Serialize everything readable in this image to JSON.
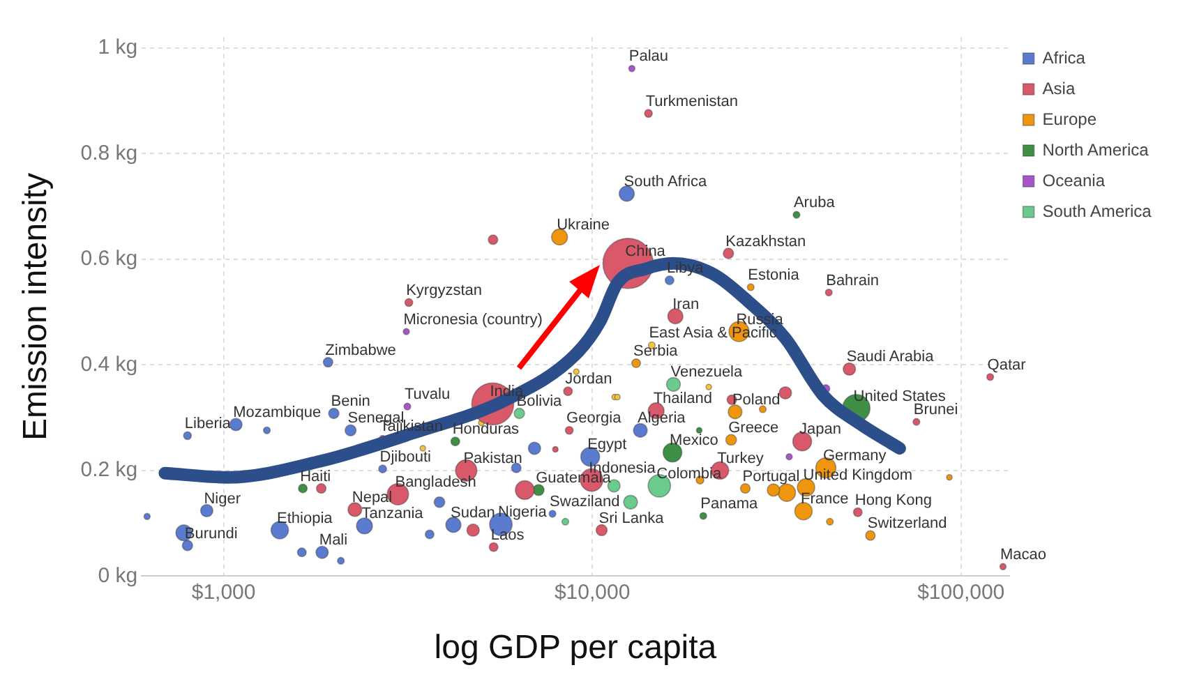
{
  "chart_data": {
    "type": "bubble",
    "xlabel": "log GDP per capita",
    "ylabel": "Emission intensity",
    "log": "x",
    "grid": true,
    "legend": "top right",
    "xlim": [
      600,
      135000
    ],
    "xticks": [
      {
        "value": 1000,
        "label": "$1,000"
      },
      {
        "value": 10000,
        "label": "$10,000"
      },
      {
        "value": 100000,
        "label": "$100,000"
      }
    ],
    "ylim": [
      0,
      1.02
    ],
    "yticks": [
      {
        "value": 0,
        "label": "0 kg"
      },
      {
        "value": 0.2,
        "label": "0.2 kg"
      },
      {
        "value": 0.4,
        "label": "0.4 kg"
      },
      {
        "value": 0.6,
        "label": "0.6 kg"
      },
      {
        "value": 0.8,
        "label": "0.8 kg"
      },
      {
        "value": 1,
        "label": "1 kg"
      }
    ],
    "series": [
      {
        "name": "Africa",
        "color": "#5b7bd0",
        "x": [
          12400,
          16200,
          1920,
          1080,
          798,
          1990,
          2210,
          2700,
          900,
          798,
          780,
          1420,
          1850,
          2410,
          4200,
          5650,
          9870,
          13500,
          7800,
          620,
          6970,
          3850,
          3620,
          2080,
          1630,
          6220,
          1310
        ],
        "values": [
          0.724,
          0.56,
          0.405,
          0.287,
          0.266,
          0.308,
          0.276,
          0.203,
          0.124,
          0.058,
          0.082,
          0.087,
          0.045,
          0.095,
          0.097,
          0.098,
          0.226,
          0.276,
          0.118,
          0.113,
          0.242,
          0.14,
          0.079,
          0.029,
          0.045,
          0.205,
          0.276
        ],
        "sizes": [
          0.09,
          0.03,
          0.036,
          0.06,
          0.024,
          0.042,
          0.048,
          0.024,
          0.06,
          0.042,
          0.1,
          0.12,
          0.06,
          0.1,
          0.09,
          0.2,
          0.14,
          0.075,
          0.018,
          0.015,
          0.06,
          0.045,
          0.03,
          0.018,
          0.03,
          0.036,
          0.018
        ]
      },
      {
        "name": "Asia",
        "color": "#d9596a",
        "x": [
          12500,
          5370,
          3180,
          14200,
          23400,
          43800,
          16800,
          49800,
          120000,
          75700,
          8590,
          14900,
          8660,
          37100,
          22200,
          52500,
          130000,
          10600,
          9960,
          4550,
          2970,
          2270,
          2700,
          5400,
          6560,
          5380,
          4750,
          7940,
          1840,
          33400,
          23900
        ],
        "values": [
          0.592,
          0.326,
          0.518,
          0.876,
          0.611,
          0.537,
          0.492,
          0.392,
          0.377,
          0.292,
          0.35,
          0.313,
          0.276,
          0.255,
          0.2,
          0.121,
          0.018,
          0.087,
          0.182,
          0.2,
          0.155,
          0.126,
          0.26,
          0.055,
          0.163,
          0.637,
          0.087,
          0.24,
          0.166,
          0.347,
          0.334
        ],
        "sizes": [
          1,
          0.7,
          0.024,
          0.024,
          0.042,
          0.018,
          0.09,
          0.06,
          0.018,
          0.018,
          0.03,
          0.1,
          0.024,
          0.14,
          0.12,
          0.03,
          0.015,
          0.048,
          0.2,
          0.18,
          0.18,
          0.075,
          0.018,
          0.03,
          0.14,
          0.036,
          0.06,
          0.012,
          0.036,
          0.06,
          0.036
        ]
      },
      {
        "name": "Europe",
        "color": "#f0960e",
        "x": [
          8150,
          26900,
          25000,
          13150,
          24400,
          23800,
          43000,
          38000,
          37400,
          26000,
          56800,
          33700,
          31000,
          44100,
          19600,
          93000,
          29000
        ],
        "values": [
          0.642,
          0.547,
          0.463,
          0.403,
          0.311,
          0.258,
          0.205,
          0.168,
          0.123,
          0.166,
          0.077,
          0.158,
          0.163,
          0.103,
          0.182,
          0.187,
          0.316
        ],
        "sizes": [
          0.1,
          0.018,
          0.16,
          0.03,
          0.075,
          0.045,
          0.16,
          0.12,
          0.12,
          0.036,
          0.036,
          0.12,
          0.06,
          0.018,
          0.024,
          0.012,
          0.018
        ]
      },
      {
        "name": "North America",
        "color": "#3f8f45",
        "x": [
          35800,
          52000,
          16500,
          20000,
          7150,
          4250,
          1640,
          19500
        ],
        "values": [
          0.684,
          0.318,
          0.234,
          0.114,
          0.163,
          0.255,
          0.166,
          0.276
        ],
        "sizes": [
          0.018,
          0.3,
          0.14,
          0.018,
          0.048,
          0.03,
          0.03,
          0.012
        ]
      },
      {
        "name": "Oceania",
        "color": "#a855c9",
        "x": [
          12800,
          3130,
          3150,
          34200,
          43000
        ],
        "values": [
          0.961,
          0.463,
          0.321,
          0.226,
          0.355
        ],
        "sizes": [
          0.015,
          0.015,
          0.018,
          0.015,
          0.024
        ]
      },
      {
        "name": "South America",
        "color": "#6acb8c",
        "x": [
          16600,
          15200,
          6340,
          12700,
          11450,
          8450
        ],
        "values": [
          0.363,
          0.171,
          0.308,
          0.14,
          0.171,
          0.103
        ],
        "sizes": [
          0.075,
          0.2,
          0.042,
          0.075,
          0.06,
          0.018
        ]
      },
      {
        "color": "#f5c542",
        "x": [
          14500,
          9050,
          11500,
          3470,
          20700,
          11700,
          5000
        ],
        "values": [
          0.437,
          0.387,
          0.339,
          0.242,
          0.358,
          0.339,
          0.29
        ],
        "sizes": [
          0.018,
          0.012,
          0.012,
          0.012,
          0.012,
          0.012,
          0.012
        ]
      },
      {
        "type": "line",
        "color": "#2c4f8c",
        "x": [
          693,
          1026,
          1840,
          3270,
          5850,
          9050,
          10500,
          11700,
          14000,
          16600,
          21000,
          26400,
          33400,
          42300,
          53000,
          68200
        ],
        "values": [
          0.195,
          0.187,
          0.218,
          0.271,
          0.334,
          0.421,
          0.482,
          0.555,
          0.582,
          0.592,
          0.574,
          0.521,
          0.45,
          0.342,
          0.289,
          0.242
        ]
      }
    ],
    "annotations": [
      {
        "text": "China",
        "x": 12500,
        "y": 0.592
      },
      {
        "text": "India",
        "x": 5370,
        "y": 0.326
      },
      {
        "text": "Palau",
        "x": 12800,
        "y": 0.961
      },
      {
        "text": "Turkmenistan",
        "x": 14200,
        "y": 0.876
      },
      {
        "text": "South Africa",
        "x": 12400,
        "y": 0.724
      },
      {
        "text": "Aruba",
        "x": 35800,
        "y": 0.684
      },
      {
        "text": "Ukraine",
        "x": 8150,
        "y": 0.642
      },
      {
        "text": "Kazakhstan",
        "x": 23400,
        "y": 0.611
      },
      {
        "text": "Libya",
        "x": 16200,
        "y": 0.56
      },
      {
        "text": "Estonia",
        "x": 26900,
        "y": 0.547
      },
      {
        "text": "Bahrain",
        "x": 43800,
        "y": 0.537
      },
      {
        "text": "Kyrgyzstan",
        "x": 3180,
        "y": 0.518
      },
      {
        "text": "Iran",
        "x": 16800,
        "y": 0.492
      },
      {
        "text": "Micronesia (country)",
        "x": 3130,
        "y": 0.463
      },
      {
        "text": "Russia",
        "x": 25000,
        "y": 0.463
      },
      {
        "text": "East Asia & Pacific",
        "x": 14500,
        "y": 0.437
      },
      {
        "text": "Zimbabwe",
        "x": 1920,
        "y": 0.405
      },
      {
        "text": "Serbia",
        "x": 13150,
        "y": 0.403
      },
      {
        "text": "Saudi Arabia",
        "x": 49800,
        "y": 0.392
      },
      {
        "text": "Qatar",
        "x": 120000,
        "y": 0.377
      },
      {
        "text": "Venezuela",
        "x": 16600,
        "y": 0.363
      },
      {
        "text": "Jordan",
        "x": 8590,
        "y": 0.35
      },
      {
        "text": "Tuvalu",
        "x": 3150,
        "y": 0.321
      },
      {
        "text": "United States",
        "x": 52000,
        "y": 0.318
      },
      {
        "text": "Benin",
        "x": 1990,
        "y": 0.308
      },
      {
        "text": "Bolivia",
        "x": 6340,
        "y": 0.308
      },
      {
        "text": "Thailand",
        "x": 14900,
        "y": 0.313
      },
      {
        "text": "Poland",
        "x": 24400,
        "y": 0.311
      },
      {
        "text": "Mozambique",
        "x": 1080,
        "y": 0.287
      },
      {
        "text": "Brunei",
        "x": 75700,
        "y": 0.292
      },
      {
        "text": "Liberia",
        "x": 798,
        "y": 0.266
      },
      {
        "text": "Senegal",
        "x": 2210,
        "y": 0.276
      },
      {
        "text": "Georgia",
        "x": 8660,
        "y": 0.276
      },
      {
        "text": "Algeria",
        "x": 13500,
        "y": 0.276
      },
      {
        "text": "Tajikistan",
        "x": 2700,
        "y": 0.26
      },
      {
        "text": "Honduras",
        "x": 4250,
        "y": 0.255
      },
      {
        "text": "Greece",
        "x": 23800,
        "y": 0.258
      },
      {
        "text": "Japan",
        "x": 37100,
        "y": 0.255
      },
      {
        "text": "Mexico",
        "x": 16500,
        "y": 0.234
      },
      {
        "text": "Egypt",
        "x": 9870,
        "y": 0.226
      },
      {
        "text": "Djibouti",
        "x": 2700,
        "y": 0.203
      },
      {
        "text": "Pakistan",
        "x": 4550,
        "y": 0.2
      },
      {
        "text": "Turkey",
        "x": 22200,
        "y": 0.2
      },
      {
        "text": "Germany",
        "x": 43000,
        "y": 0.205
      },
      {
        "text": "Indonesia",
        "x": 9960,
        "y": 0.182
      },
      {
        "text": "Haiti",
        "x": 1640,
        "y": 0.166
      },
      {
        "text": "Bangladesh",
        "x": 2970,
        "y": 0.155
      },
      {
        "text": "Guatemala",
        "x": 7150,
        "y": 0.163
      },
      {
        "text": "Colombia",
        "x": 15200,
        "y": 0.171
      },
      {
        "text": "Portugal",
        "x": 26000,
        "y": 0.166
      },
      {
        "text": "United Kingdom",
        "x": 38000,
        "y": 0.168
      },
      {
        "text": "Niger",
        "x": 900,
        "y": 0.124
      },
      {
        "text": "Nepal",
        "x": 2270,
        "y": 0.126
      },
      {
        "text": "Swaziland",
        "x": 7800,
        "y": 0.118
      },
      {
        "text": "France",
        "x": 37400,
        "y": 0.123
      },
      {
        "text": "Hong Kong",
        "x": 52500,
        "y": 0.121
      },
      {
        "text": "Tanzania",
        "x": 2410,
        "y": 0.095
      },
      {
        "text": "Sudan",
        "x": 4200,
        "y": 0.097
      },
      {
        "text": "Nigeria",
        "x": 5650,
        "y": 0.098
      },
      {
        "text": "Panama",
        "x": 20000,
        "y": 0.114
      },
      {
        "text": "Ethiopia",
        "x": 1420,
        "y": 0.087
      },
      {
        "text": "Sri Lanka",
        "x": 10600,
        "y": 0.087
      },
      {
        "text": "Burundi",
        "x": 798,
        "y": 0.058
      },
      {
        "text": "Mali",
        "x": 1850,
        "y": 0.045
      },
      {
        "text": "Laos",
        "x": 5400,
        "y": 0.055
      },
      {
        "text": "Switzerland",
        "x": 56800,
        "y": 0.077
      },
      {
        "text": "Macao",
        "x": 130000,
        "y": 0.018
      }
    ]
  }
}
